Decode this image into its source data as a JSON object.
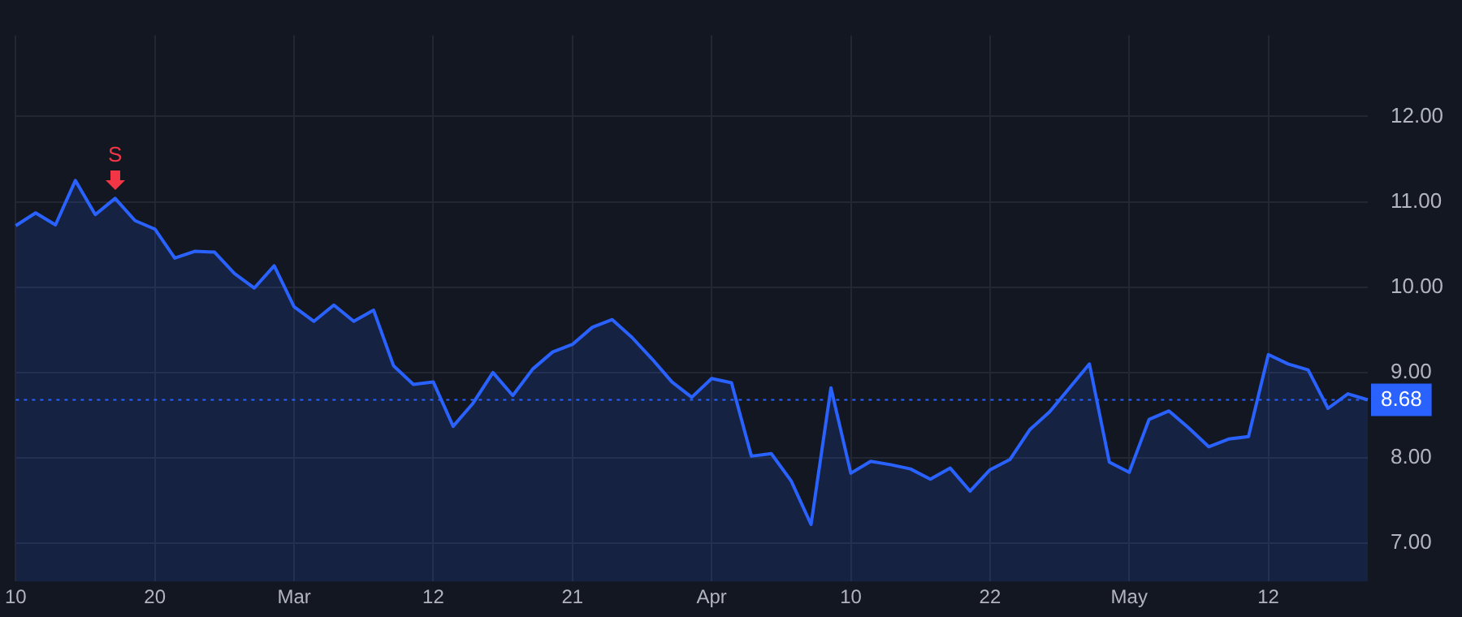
{
  "chart_data": {
    "type": "area",
    "categories": [
      "10",
      null,
      null,
      null,
      null,
      null,
      null,
      "20",
      null,
      null,
      null,
      null,
      null,
      null,
      "Mar",
      null,
      null,
      null,
      null,
      null,
      null,
      "12",
      null,
      null,
      null,
      null,
      null,
      null,
      "21",
      null,
      null,
      null,
      null,
      null,
      null,
      "Apr",
      null,
      null,
      null,
      null,
      null,
      null,
      "10",
      null,
      null,
      null,
      null,
      null,
      null,
      "22",
      null,
      null,
      null,
      null,
      null,
      null,
      "May",
      null,
      null,
      null,
      null,
      null,
      null,
      "12",
      null,
      null,
      null,
      null,
      null
    ],
    "series": [
      {
        "color": "#2962ff",
        "values": [
          10.72,
          10.87,
          10.73,
          11.25,
          10.85,
          11.04,
          10.78,
          10.68,
          10.34,
          10.42,
          10.41,
          10.16,
          9.99,
          10.25,
          9.77,
          9.6,
          9.79,
          9.6,
          9.73,
          9.08,
          8.86,
          8.89,
          8.37,
          8.64,
          9.0,
          8.73,
          9.04,
          9.24,
          9.33,
          9.53,
          9.62,
          9.41,
          9.16,
          8.89,
          8.71,
          8.93,
          8.88,
          8.02,
          8.05,
          7.73,
          7.22,
          8.82,
          7.82,
          7.96,
          7.92,
          7.87,
          7.75,
          7.88,
          7.61,
          7.86,
          7.98,
          8.33,
          8.54,
          8.82,
          9.1,
          7.95,
          7.83,
          8.45,
          8.55,
          8.35,
          8.13,
          8.22,
          8.25,
          9.21,
          9.1,
          9.03,
          8.58,
          8.75,
          8.68
        ]
      }
    ],
    "ylim": [
      6.55,
      12.95
    ],
    "yticks": [
      {
        "value": 7,
        "label": "7.00"
      },
      {
        "value": 8,
        "label": "8.00"
      },
      {
        "value": 9,
        "label": "9.00"
      },
      {
        "value": 10,
        "label": "10.00"
      },
      {
        "value": 11,
        "label": "11.00"
      },
      {
        "value": 12,
        "label": "12.00"
      }
    ],
    "grid": true,
    "legend": false,
    "ref_lines": [
      {
        "axis": "y",
        "value": 8.68,
        "label": "8.68",
        "color": "#2962ff",
        "line_style": "dotted"
      }
    ],
    "annotations": [
      {
        "text": "S",
        "y": 11.04
      }
    ]
  }
}
